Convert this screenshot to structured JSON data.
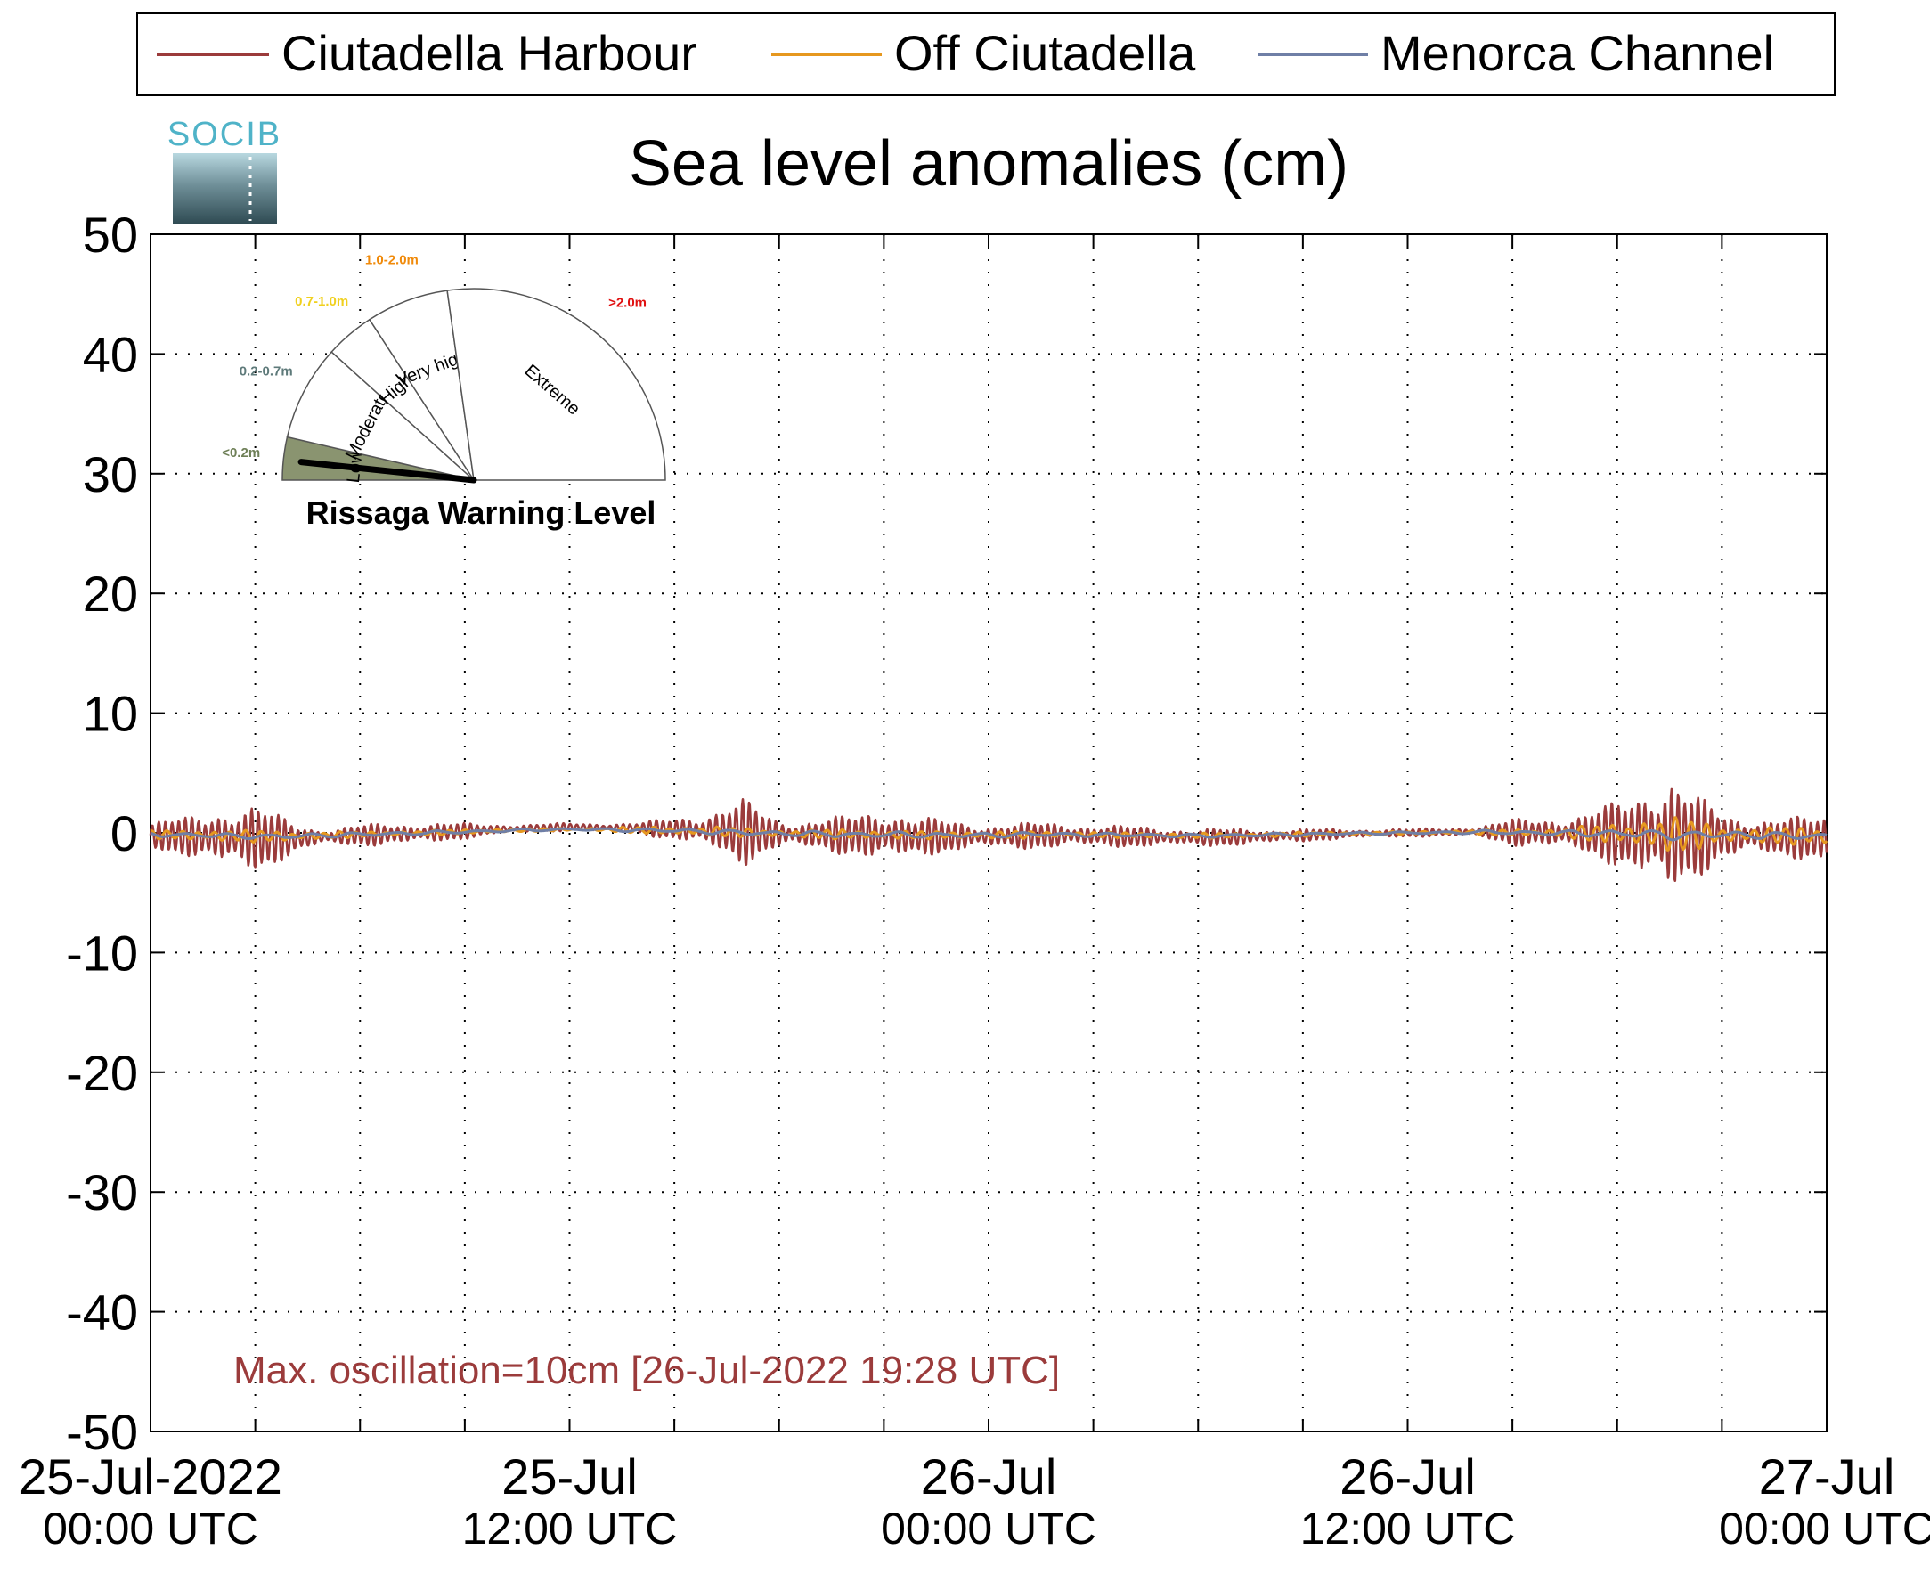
{
  "chart_data": {
    "type": "line",
    "title": "Sea level anomalies (cm)",
    "xlabel": "",
    "ylabel": "",
    "ylim": [
      -50,
      50
    ],
    "yticks": [
      -50,
      -40,
      -30,
      -20,
      -10,
      0,
      10,
      20,
      30,
      40,
      50
    ],
    "xlim_hours": [
      0,
      48
    ],
    "xtick_labels": [
      {
        "hour": 0,
        "line1": "25-Jul-2022",
        "line2": "00:00 UTC"
      },
      {
        "hour": 12,
        "line1": "25-Jul",
        "line2": "12:00 UTC"
      },
      {
        "hour": 24,
        "line1": "26-Jul",
        "line2": "00:00 UTC"
      },
      {
        "hour": 36,
        "line1": "26-Jul",
        "line2": "12:00 UTC"
      },
      {
        "hour": 48,
        "line1": "27-Jul",
        "line2": "00:00 UTC"
      }
    ],
    "grid": true,
    "legend_position": "top",
    "series": [
      {
        "name": "Ciutadella Harbour",
        "color": "#9b3b3b",
        "amplitude_envelope": [
          [
            0,
            1.0
          ],
          [
            1,
            1.5
          ],
          [
            2,
            2.5
          ],
          [
            3,
            2.5
          ],
          [
            4,
            1.5
          ],
          [
            5,
            0.6
          ],
          [
            6,
            0.8
          ],
          [
            7,
            0.9
          ],
          [
            8,
            0.8
          ],
          [
            9,
            0.6
          ],
          [
            10,
            0.4
          ],
          [
            11,
            0.3
          ],
          [
            12,
            0.3
          ],
          [
            14,
            0.4
          ],
          [
            16,
            1.5
          ],
          [
            17,
            2.5
          ],
          [
            18,
            1.2
          ],
          [
            19,
            1.2
          ],
          [
            20,
            1.5
          ],
          [
            21,
            2.3
          ],
          [
            22,
            1.5
          ],
          [
            23,
            1.2
          ],
          [
            24,
            1.0
          ],
          [
            26,
            1.0
          ],
          [
            28,
            0.8
          ],
          [
            30,
            0.7
          ],
          [
            32,
            0.6
          ],
          [
            34,
            0.4
          ],
          [
            36,
            0.3
          ],
          [
            38,
            0.4
          ],
          [
            39,
            1.0
          ],
          [
            40,
            1.3
          ],
          [
            41,
            1.5
          ],
          [
            42,
            2.5
          ],
          [
            43,
            4.5
          ],
          [
            43.5,
            5.0
          ],
          [
            44,
            3.5
          ],
          [
            45,
            2.0
          ],
          [
            46,
            1.5
          ],
          [
            47,
            1.5
          ],
          [
            48,
            2.0
          ]
        ],
        "baseline_envelope": [
          [
            0,
            -0.2
          ],
          [
            2,
            -0.4
          ],
          [
            4,
            -0.5
          ],
          [
            6,
            -0.2
          ],
          [
            8,
            0
          ],
          [
            10,
            0.3
          ],
          [
            12,
            0.5
          ],
          [
            14,
            0.4
          ],
          [
            16,
            0.2
          ],
          [
            18,
            -0.1
          ],
          [
            20,
            -0.2
          ],
          [
            22,
            -0.3
          ],
          [
            24,
            -0.3
          ],
          [
            26,
            -0.2
          ],
          [
            28,
            -0.3
          ],
          [
            30,
            -0.4
          ],
          [
            32,
            -0.3
          ],
          [
            34,
            -0.1
          ],
          [
            36,
            0
          ],
          [
            38,
            0.1
          ],
          [
            40,
            0
          ],
          [
            42,
            -0.1
          ],
          [
            44,
            -0.3
          ],
          [
            46,
            -0.3
          ],
          [
            48,
            -0.5
          ]
        ]
      },
      {
        "name": "Off Ciutadella",
        "color": "#e6981f",
        "amplitude_envelope": [
          [
            0,
            0.3
          ],
          [
            2,
            0.5
          ],
          [
            4,
            0.4
          ],
          [
            6,
            0.2
          ],
          [
            8,
            0.2
          ],
          [
            12,
            0.1
          ],
          [
            16,
            0.4
          ],
          [
            18,
            0.3
          ],
          [
            20,
            0.4
          ],
          [
            22,
            0.3
          ],
          [
            24,
            0.3
          ],
          [
            28,
            0.2
          ],
          [
            32,
            0.2
          ],
          [
            36,
            0.1
          ],
          [
            40,
            0.3
          ],
          [
            42,
            0.8
          ],
          [
            43,
            1.5
          ],
          [
            44,
            1.3
          ],
          [
            45,
            0.8
          ],
          [
            46,
            0.6
          ],
          [
            48,
            0.8
          ]
        ]
      },
      {
        "name": "Menorca Channel",
        "color": "#6f7fa6",
        "amplitude_envelope": [
          [
            0,
            0.2
          ],
          [
            4,
            0.2
          ],
          [
            8,
            0.15
          ],
          [
            12,
            0.1
          ],
          [
            16,
            0.2
          ],
          [
            20,
            0.25
          ],
          [
            24,
            0.2
          ],
          [
            28,
            0.15
          ],
          [
            32,
            0.15
          ],
          [
            36,
            0.1
          ],
          [
            40,
            0.2
          ],
          [
            43,
            0.4
          ],
          [
            46,
            0.3
          ],
          [
            48,
            0.3
          ]
        ]
      }
    ],
    "annotation": "Max. oscillation=10cm [26-Jul-2022 19:28 UTC]"
  },
  "logo": {
    "text": "SOCIB"
  },
  "gauge": {
    "title": "Rissaga Warning Level",
    "current_level": "Low",
    "levels": [
      {
        "label": "Low",
        "range": "<0.2m",
        "range_color": "#6f8058",
        "fill": "#8a9470"
      },
      {
        "label": "Moderate",
        "range": "0.2-0.7m",
        "range_color": "#5e7a7a",
        "fill": "#ffffff"
      },
      {
        "label": "High",
        "range": "0.7-1.0m",
        "range_color": "#f0d01e",
        "fill": "#ffffff"
      },
      {
        "label": "Very high",
        "range": "1.0-2.0m",
        "range_color": "#f08a0a",
        "fill": "#ffffff"
      },
      {
        "label": "Extreme",
        "range": ">2.0m",
        "range_color": "#e01010",
        "fill": "#ffffff"
      }
    ]
  }
}
